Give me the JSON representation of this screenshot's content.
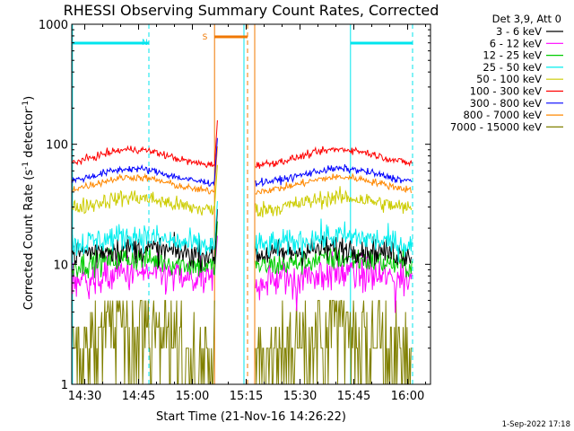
{
  "chart_data": {
    "type": "line",
    "title": "RHESSI Observing Summary Count Rates, Corrected",
    "xlabel": "Start Time (21-Nov-16 14:26:22)",
    "ylabel_main": "Corrected Count Rate (s",
    "ylabel_sup1": "-1",
    "ylabel_mid": " detector",
    "ylabel_sup2": "-1",
    "ylabel_end": ")",
    "yscale": "log",
    "ylim": [
      1,
      1000
    ],
    "y_ticks": [
      {
        "v": 1,
        "label": "1"
      },
      {
        "v": 10,
        "label": "10"
      },
      {
        "v": 100,
        "label": "100"
      },
      {
        "v": 1000,
        "label": "1000"
      }
    ],
    "xlim_min": [
      0,
      100
    ],
    "x_ticks": [
      {
        "m": 3.63,
        "label": "14:30"
      },
      {
        "m": 18.63,
        "label": "14:45"
      },
      {
        "m": 33.63,
        "label": "15:00"
      },
      {
        "m": 48.63,
        "label": "15:15"
      },
      {
        "m": 63.63,
        "label": "15:30"
      },
      {
        "m": 78.63,
        "label": "15:45"
      },
      {
        "m": 93.63,
        "label": "16:00"
      }
    ],
    "legend_title": "Det 3,9, Att 0",
    "series": [
      {
        "name": "3 - 6 keV",
        "color": "#000000",
        "level": 12,
        "amp": 0.06,
        "noise": 0.13
      },
      {
        "name": "6 - 12 keV",
        "color": "#ff00ff",
        "level": 7.2,
        "amp": 0.08,
        "noise": 0.18
      },
      {
        "name": "12 - 25 keV",
        "color": "#00cc00",
        "level": 9.5,
        "amp": 0.08,
        "noise": 0.12
      },
      {
        "name": "25 - 50 keV",
        "color": "#00eeee",
        "level": 14.0,
        "amp": 0.1,
        "noise": 0.13
      },
      {
        "name": "50 - 100 keV",
        "color": "#cccc00",
        "level": 28,
        "amp": 0.13,
        "noise": 0.08
      },
      {
        "name": "100 - 300 keV",
        "color": "#ff0000",
        "level": 66,
        "amp": 0.17,
        "noise": 0.035
      },
      {
        "name": "300 - 800 keV",
        "color": "#0000ff",
        "level": 47,
        "amp": 0.15,
        "noise": 0.035
      },
      {
        "name": "800 - 7000 keV",
        "color": "#ff8800",
        "level": 40,
        "amp": 0.15,
        "noise": 0.035
      },
      {
        "name": "7000 - 15000 keV",
        "color": "#808000",
        "level": 2.5,
        "amp": 0.18,
        "noise": 0.0
      }
    ],
    "annotations": {
      "night_label": "N",
      "saa_label": "S"
    },
    "timestamp": "1-Sep-2022 17:18"
  }
}
